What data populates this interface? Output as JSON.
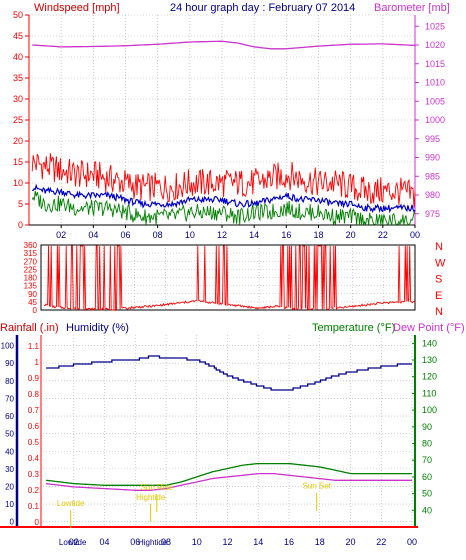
{
  "header": {
    "left_label": "Windspeed [mph]",
    "center_label": "24 hour graph day : February 07 2014",
    "right_label": "Barometer [mb]"
  },
  "colors": {
    "red": "#ff0000",
    "magenta": "#cc33cc",
    "green": "#008000",
    "blue": "#0000cc",
    "navy": "#00008b",
    "yellow": "#e6c800",
    "grid": "#b0b0b0",
    "axis": "#000000"
  },
  "chart_data": [
    {
      "type": "line",
      "name": "wind-barometer",
      "xlabel": "",
      "x_ticks": [
        "02",
        "04",
        "06",
        "08",
        "10",
        "12",
        "14",
        "16",
        "18",
        "20",
        "22",
        "00"
      ],
      "left_axis": {
        "label": "Windspeed [mph]",
        "ticks": [
          0,
          5,
          10,
          15,
          20,
          25,
          30,
          35,
          40,
          45,
          50
        ],
        "ylim": [
          0,
          50
        ],
        "grid": true
      },
      "right_axis": {
        "label": "Barometer [mb]",
        "ticks": [
          975,
          980,
          985,
          990,
          995,
          1000,
          1005,
          1010,
          1015,
          1020,
          1025
        ],
        "ylim": [
          972,
          1028
        ]
      },
      "series": [
        {
          "role": "gust",
          "color": "red",
          "axis": "left",
          "points": [
            [
              0.2,
              15
            ],
            [
              1,
              14
            ],
            [
              2,
              13
            ],
            [
              3,
              12
            ],
            [
              4,
              12
            ],
            [
              5,
              11
            ],
            [
              6,
              10
            ],
            [
              7,
              9
            ],
            [
              8,
              9
            ],
            [
              9,
              9
            ],
            [
              10,
              10
            ],
            [
              11,
              10
            ],
            [
              12,
              10
            ],
            [
              13,
              10
            ],
            [
              14,
              10
            ],
            [
              15,
              11
            ],
            [
              16,
              12
            ],
            [
              17,
              11
            ],
            [
              18,
              10
            ],
            [
              19,
              10
            ],
            [
              20,
              9
            ],
            [
              21,
              8
            ],
            [
              22,
              8
            ],
            [
              23,
              8
            ],
            [
              24,
              7
            ]
          ]
        },
        {
          "role": "average",
          "color": "blue",
          "axis": "left",
          "points": [
            [
              0.2,
              9
            ],
            [
              1,
              8
            ],
            [
              2,
              8
            ],
            [
              3,
              7
            ],
            [
              4,
              7
            ],
            [
              5,
              7
            ],
            [
              6,
              6
            ],
            [
              7,
              5
            ],
            [
              8,
              5
            ],
            [
              9,
              5
            ],
            [
              10,
              6
            ],
            [
              11,
              6
            ],
            [
              12,
              6
            ],
            [
              13,
              5
            ],
            [
              14,
              5
            ],
            [
              15,
              6
            ],
            [
              16,
              7
            ],
            [
              17,
              6
            ],
            [
              18,
              6
            ],
            [
              19,
              5
            ],
            [
              20,
              5
            ],
            [
              21,
              4
            ],
            [
              22,
              4
            ],
            [
              23,
              4
            ],
            [
              24,
              4
            ]
          ]
        },
        {
          "role": "low",
          "color": "green",
          "axis": "left",
          "points": [
            [
              0.2,
              7
            ],
            [
              1,
              5
            ],
            [
              2,
              5
            ],
            [
              3,
              4
            ],
            [
              4,
              4
            ],
            [
              5,
              4
            ],
            [
              6,
              3
            ],
            [
              7,
              2
            ],
            [
              8,
              2
            ],
            [
              9,
              2
            ],
            [
              10,
              3
            ],
            [
              11,
              3
            ],
            [
              12,
              3
            ],
            [
              13,
              2
            ],
            [
              14,
              3
            ],
            [
              15,
              3
            ],
            [
              16,
              4
            ],
            [
              17,
              3
            ],
            [
              18,
              3
            ],
            [
              19,
              2
            ],
            [
              20,
              2
            ],
            [
              21,
              1
            ],
            [
              22,
              1
            ],
            [
              23,
              1
            ],
            [
              24,
              1
            ]
          ]
        },
        {
          "role": "barometer",
          "color": "magenta",
          "axis": "right",
          "points": [
            [
              0.2,
              1020
            ],
            [
              2,
              1019.5
            ],
            [
              4,
              1019.6
            ],
            [
              6,
              1019.8
            ],
            [
              8,
              1020.2
            ],
            [
              10,
              1020.8
            ],
            [
              12,
              1021
            ],
            [
              13,
              1020.5
            ],
            [
              14,
              1019.5
            ],
            [
              15,
              1019
            ],
            [
              16,
              1019
            ],
            [
              18,
              1019.7
            ],
            [
              20,
              1020.2
            ],
            [
              22,
              1020.3
            ],
            [
              24,
              1019.9
            ]
          ]
        }
      ]
    },
    {
      "type": "line",
      "name": "wind-direction",
      "x_ticks": [
        "02",
        "04",
        "06",
        "08",
        "10",
        "12",
        "14",
        "16",
        "18",
        "20",
        "22",
        "00"
      ],
      "left_axis": {
        "ticks": [
          0,
          45,
          90,
          135,
          180,
          225,
          270,
          315,
          360
        ],
        "ylim": [
          0,
          360
        ],
        "grid": true
      },
      "right_axis": {
        "ticks": [
          "N",
          "W",
          "S",
          "E",
          "N"
        ]
      },
      "series": [
        {
          "role": "direction",
          "color": "red",
          "points": [
            [
              0.2,
              30
            ],
            [
              1,
              15
            ],
            [
              2,
              10
            ],
            [
              3,
              5
            ],
            [
              4,
              5
            ],
            [
              5,
              5
            ],
            [
              6,
              15
            ],
            [
              7,
              20
            ],
            [
              8,
              30
            ],
            [
              9,
              40
            ],
            [
              10,
              50
            ],
            [
              11,
              40
            ],
            [
              12,
              30
            ],
            [
              13,
              20
            ],
            [
              14,
              10
            ],
            [
              15,
              20
            ],
            [
              16,
              10
            ],
            [
              17,
              5
            ],
            [
              18,
              5
            ],
            [
              19,
              10
            ],
            [
              20,
              20
            ],
            [
              21,
              30
            ],
            [
              22,
              40
            ],
            [
              23,
              45
            ],
            [
              24,
              45
            ]
          ]
        }
      ]
    },
    {
      "type": "line",
      "name": "rain-humidity-temperature",
      "labels": {
        "rainfall": "Rainfall (.in)",
        "humidity": "Humidity (%)",
        "temperature": "Temperature (°F)",
        "dew_point": "Dew Point (°F)"
      },
      "x_ticks": [
        "02",
        "04",
        "06",
        "08",
        "10",
        "12",
        "14",
        "16",
        "18",
        "20",
        "22",
        "00"
      ],
      "left_axis_humidity": {
        "ticks": [
          0,
          10,
          20,
          30,
          40,
          50,
          60,
          70,
          80,
          90,
          100
        ],
        "ylim": [
          -3,
          106
        ]
      },
      "left_axis_rain": {
        "ticks": [
          0,
          0.1,
          0.2,
          0.3,
          0.4,
          0.5,
          0.6,
          0.7,
          0.8,
          0.9,
          1,
          1.1
        ],
        "ylim": [
          -0.03,
          1.17
        ]
      },
      "right_axis_temperature": {
        "ticks": [
          40,
          50,
          60,
          70,
          80,
          90,
          100,
          110,
          120,
          130,
          140
        ],
        "ylim": [
          30,
          145
        ]
      },
      "series": [
        {
          "role": "humidity",
          "color": "navy",
          "points": [
            [
              0.2,
              87
            ],
            [
              2,
              89
            ],
            [
              4,
              91
            ],
            [
              6,
              92
            ],
            [
              7,
              94
            ],
            [
              8,
              93
            ],
            [
              10,
              92
            ],
            [
              11,
              88
            ],
            [
              12,
              83
            ],
            [
              13,
              80
            ],
            [
              14,
              77
            ],
            [
              15,
              75
            ],
            [
              16,
              75
            ],
            [
              17,
              77
            ],
            [
              18,
              80
            ],
            [
              19,
              83
            ],
            [
              20,
              85
            ],
            [
              22,
              88
            ],
            [
              24,
              90
            ]
          ]
        },
        {
          "role": "temperature",
          "color": "green",
          "points": [
            [
              0.2,
              58
            ],
            [
              2,
              56
            ],
            [
              4,
              55
            ],
            [
              6,
              55
            ],
            [
              8,
              55
            ],
            [
              9,
              57
            ],
            [
              10,
              60
            ],
            [
              11,
              63
            ],
            [
              12,
              65
            ],
            [
              13,
              67
            ],
            [
              14,
              68
            ],
            [
              15,
              68
            ],
            [
              16,
              68
            ],
            [
              17,
              67
            ],
            [
              18,
              66
            ],
            [
              19,
              64
            ],
            [
              20,
              62
            ],
            [
              21,
              62
            ],
            [
              22,
              62
            ],
            [
              23,
              62
            ],
            [
              24,
              62
            ]
          ]
        },
        {
          "role": "dew_point",
          "color": "magenta",
          "points": [
            [
              0.2,
              56
            ],
            [
              2,
              54
            ],
            [
              4,
              53
            ],
            [
              6,
              52
            ],
            [
              7,
              52
            ],
            [
              8,
              53
            ],
            [
              9,
              55
            ],
            [
              10,
              57
            ],
            [
              11,
              59
            ],
            [
              12,
              60
            ],
            [
              13,
              61
            ],
            [
              14,
              62
            ],
            [
              15,
              62
            ],
            [
              16,
              61
            ],
            [
              17,
              60
            ],
            [
              18,
              59
            ],
            [
              19,
              58
            ],
            [
              20,
              58
            ],
            [
              22,
              58
            ],
            [
              24,
              58
            ]
          ]
        },
        {
          "role": "rainfall",
          "color": "red",
          "points": [
            [
              0.2,
              0
            ],
            [
              24,
              0
            ]
          ]
        }
      ],
      "annotations": [
        {
          "label": "Lowtide",
          "time": 1.8,
          "level": 0.1
        },
        {
          "label": "Hightide",
          "time": 7.0,
          "level": 0.14
        },
        {
          "label": "Sun Rise",
          "time": 7.4,
          "level": 0.2
        },
        {
          "label": "Sun Set",
          "time": 17.8,
          "level": 0.21
        }
      ],
      "bottom_markers": [
        {
          "label": "Lowtide",
          "time": 1.8
        },
        {
          "label": "Hightide",
          "time": 7.0
        }
      ]
    }
  ]
}
